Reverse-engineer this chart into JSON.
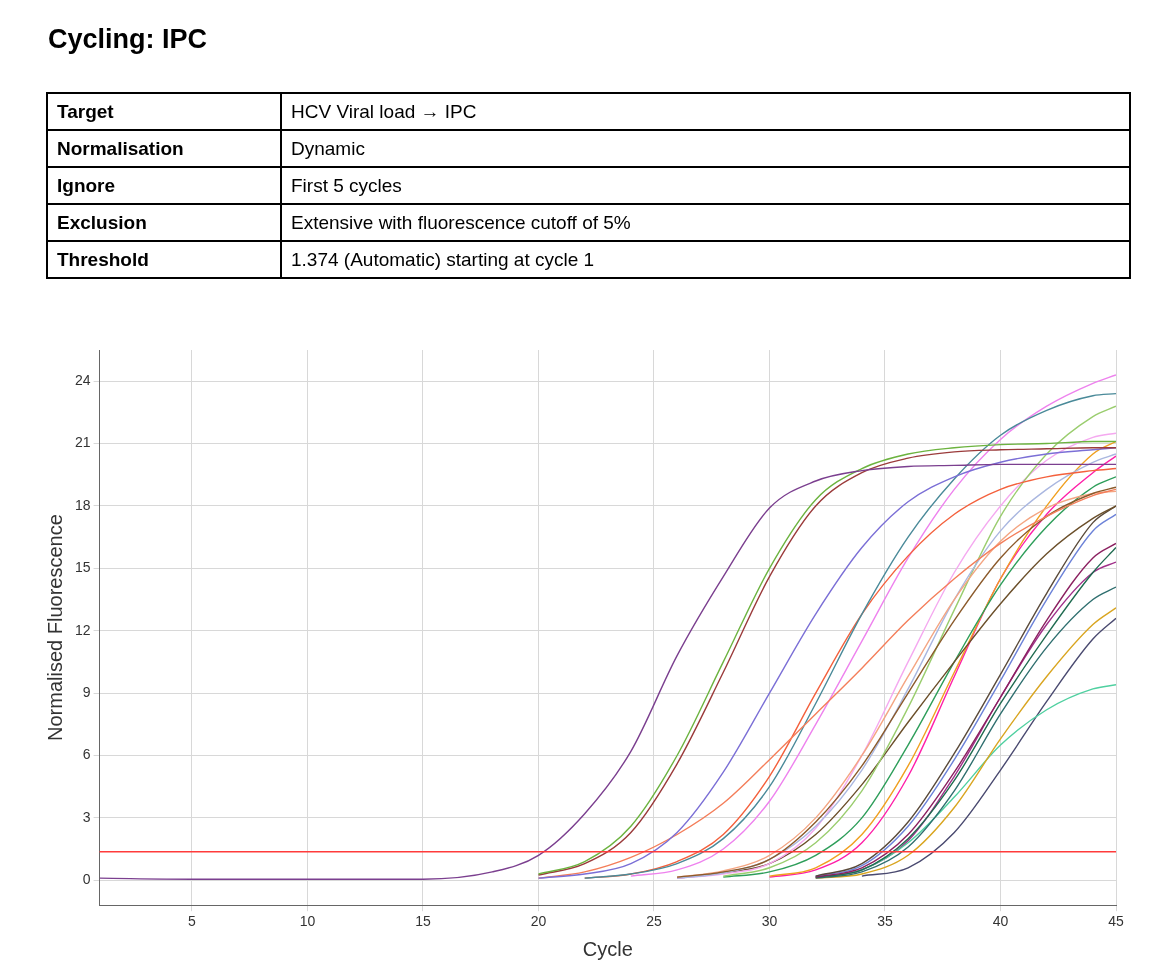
{
  "chart_data": {
    "type": "line",
    "title": "Cycling: IPC",
    "annotations": [
      "Target",
      "HCV Viral load → IPC",
      "Normalisation",
      "Dynamic",
      "Ignore",
      "First 5 cycles",
      "Exclusion",
      "Extensive with fluorescence cutoff of 5%",
      "Threshold",
      "1.374 (Automatic) starting at cycle 1"
    ],
    "xlabel": "Cycle",
    "ylabel": "Normalised Fluorescence",
    "x": [
      1,
      5,
      15,
      18,
      20,
      22,
      24,
      26,
      28,
      30,
      32,
      34,
      36,
      38,
      40,
      42,
      44,
      45
    ],
    "xlim": [
      1,
      45
    ],
    "xticks": [
      5,
      10,
      15,
      20,
      25,
      30,
      35,
      40,
      45
    ],
    "ylim": [
      -1.2,
      25.5
    ],
    "yticks": [
      0,
      3,
      6,
      9,
      12,
      15,
      18,
      21,
      24
    ],
    "grid": true,
    "legend": false,
    "marker": "none",
    "line_style": "solid",
    "ref_lines": [
      {
        "axis": "y",
        "value": 1.374,
        "color": "#ff3b3b"
      }
    ],
    "series": [
      {
        "color": "#7b3f8f",
        "values": [
          0.1,
          0.05,
          0.05,
          0.4,
          1.2,
          3.2,
          6.2,
          10.8,
          14.6,
          17.9,
          19.2,
          19.7,
          19.9,
          19.95,
          20,
          20,
          20,
          20
        ]
      },
      {
        "color": "#6cb33f",
        "values": [
          null,
          null,
          null,
          null,
          0.3,
          0.9,
          2.6,
          6,
          10.5,
          15,
          18.3,
          19.8,
          20.5,
          20.8,
          20.95,
          21,
          21.1,
          21.1
        ]
      },
      {
        "color": "#9b3b3b",
        "values": [
          null,
          null,
          null,
          null,
          0.25,
          0.8,
          2.3,
          5.6,
          10,
          14.6,
          18,
          19.6,
          20.3,
          20.6,
          20.7,
          20.75,
          20.8,
          20.8
        ]
      },
      {
        "color": "#7b6fd6",
        "values": [
          null,
          null,
          null,
          null,
          0.1,
          0.3,
          0.8,
          2.3,
          5.2,
          9,
          12.8,
          16,
          18.2,
          19.4,
          20.1,
          20.5,
          20.7,
          20.8
        ]
      },
      {
        "color": "#f47e5a",
        "values": [
          null,
          null,
          null,
          null,
          0.1,
          0.4,
          1.1,
          2.2,
          3.7,
          5.8,
          8,
          10.2,
          12.5,
          14.5,
          16.2,
          17.5,
          18.5,
          18.8
        ]
      },
      {
        "color": "#4a8a99",
        "values": [
          null,
          null,
          null,
          null,
          null,
          0.1,
          0.3,
          0.8,
          2,
          4.5,
          8.5,
          12.8,
          16.5,
          19.3,
          21.4,
          22.6,
          23.3,
          23.4
        ]
      },
      {
        "color": "#f4603c",
        "values": [
          null,
          null,
          null,
          null,
          null,
          0.1,
          0.3,
          0.9,
          2.2,
          5,
          9,
          12.8,
          15.6,
          17.6,
          18.8,
          19.4,
          19.7,
          19.8
        ]
      },
      {
        "color": "#ee82ee",
        "values": [
          null,
          null,
          null,
          null,
          null,
          null,
          0.2,
          0.5,
          1.5,
          3.8,
          7.5,
          11.5,
          15.5,
          18.8,
          21.2,
          22.8,
          23.9,
          24.3
        ]
      },
      {
        "color": "#8b5a2b",
        "values": [
          null,
          null,
          null,
          null,
          null,
          null,
          null,
          0.15,
          0.4,
          1,
          2.8,
          5.5,
          9,
          12.5,
          15.5,
          17.5,
          18.6,
          18.9
        ]
      },
      {
        "color": "#f4a582",
        "values": [
          null,
          null,
          null,
          null,
          null,
          null,
          null,
          0.15,
          0.45,
          1.2,
          3,
          6,
          9.8,
          13.5,
          16.3,
          17.9,
          18.6,
          18.7
        ]
      },
      {
        "color": "#aab7e0",
        "values": [
          null,
          null,
          null,
          null,
          null,
          null,
          null,
          0.1,
          0.35,
          1,
          2.6,
          5.3,
          9.2,
          13.5,
          16.8,
          18.8,
          20.1,
          20.5
        ]
      },
      {
        "color": "#9acd6e",
        "values": [
          null,
          null,
          null,
          null,
          null,
          null,
          null,
          null,
          0.2,
          0.6,
          1.8,
          4.3,
          8.3,
          13,
          17.5,
          20.5,
          22.3,
          22.8
        ]
      },
      {
        "color": "#f5a9f0",
        "values": [
          null,
          null,
          null,
          null,
          null,
          null,
          null,
          0.1,
          0.3,
          0.8,
          2.5,
          6,
          10.5,
          14.8,
          18,
          20.2,
          21.3,
          21.5
        ]
      },
      {
        "color": "#6b4f2a",
        "values": [
          null,
          null,
          null,
          null,
          null,
          null,
          null,
          0.1,
          0.35,
          0.8,
          2.2,
          4.6,
          7.6,
          10.5,
          13.3,
          15.7,
          17.4,
          18
        ]
      },
      {
        "color": "#2e9e5a",
        "values": [
          null,
          null,
          null,
          null,
          null,
          null,
          null,
          null,
          0.15,
          0.4,
          1.2,
          3,
          6.5,
          10.5,
          14.2,
          17,
          18.9,
          19.4
        ]
      },
      {
        "color": "#f0a020",
        "values": [
          null,
          null,
          null,
          null,
          null,
          null,
          null,
          null,
          null,
          0.2,
          0.6,
          2.2,
          5.5,
          10,
          14.5,
          18,
          20.5,
          21.1
        ]
      },
      {
        "color": "#ff1fa8",
        "values": [
          null,
          null,
          null,
          null,
          null,
          null,
          null,
          null,
          null,
          0.15,
          0.5,
          1.8,
          5,
          9.8,
          14.5,
          17.6,
          19.6,
          20.4
        ]
      },
      {
        "color": "#5a4a3a",
        "values": [
          null,
          null,
          null,
          null,
          null,
          null,
          null,
          null,
          null,
          null,
          0.2,
          0.8,
          2.8,
          6.1,
          9.9,
          13.8,
          17.2,
          18
        ]
      },
      {
        "color": "#8b2060",
        "values": [
          null,
          null,
          null,
          null,
          null,
          null,
          null,
          null,
          null,
          null,
          0.15,
          0.6,
          2.2,
          5.2,
          8.8,
          12.5,
          15.5,
          16.2
        ]
      },
      {
        "color": "#6c82d8",
        "values": [
          null,
          null,
          null,
          null,
          null,
          null,
          null,
          null,
          null,
          null,
          0.2,
          0.7,
          2.6,
          5.8,
          9.6,
          13.5,
          16.8,
          17.6
        ]
      },
      {
        "color": "#1f6b50",
        "values": [
          null,
          null,
          null,
          null,
          null,
          null,
          null,
          null,
          null,
          null,
          0.15,
          0.5,
          2,
          4.8,
          8.5,
          11.8,
          14.8,
          16
        ]
      },
      {
        "color": "#2f6f6f",
        "values": [
          null,
          null,
          null,
          null,
          null,
          null,
          null,
          null,
          null,
          null,
          0.1,
          0.4,
          1.6,
          4.3,
          8,
          11.2,
          13.5,
          14.1
        ]
      },
      {
        "color": "#d9a520",
        "values": [
          null,
          null,
          null,
          null,
          null,
          null,
          null,
          null,
          null,
          null,
          0.1,
          0.3,
          1.2,
          3.5,
          6.8,
          9.8,
          12.3,
          13.1
        ]
      },
      {
        "color": "#4fd0a0",
        "values": [
          null,
          null,
          null,
          null,
          null,
          null,
          null,
          null,
          null,
          null,
          0.15,
          0.5,
          1.8,
          4,
          6.5,
          8.2,
          9.2,
          9.4
        ]
      },
      {
        "color": "#4a4a70",
        "values": [
          null,
          null,
          null,
          null,
          null,
          null,
          null,
          null,
          null,
          null,
          null,
          0.2,
          0.6,
          2.3,
          5.3,
          8.6,
          11.6,
          12.6
        ]
      },
      {
        "color": "#a0308a",
        "values": [
          null,
          null,
          null,
          null,
          null,
          null,
          null,
          null,
          null,
          null,
          0.15,
          0.5,
          1.9,
          5,
          8.8,
          12.3,
          14.8,
          15.3
        ]
      }
    ]
  }
}
